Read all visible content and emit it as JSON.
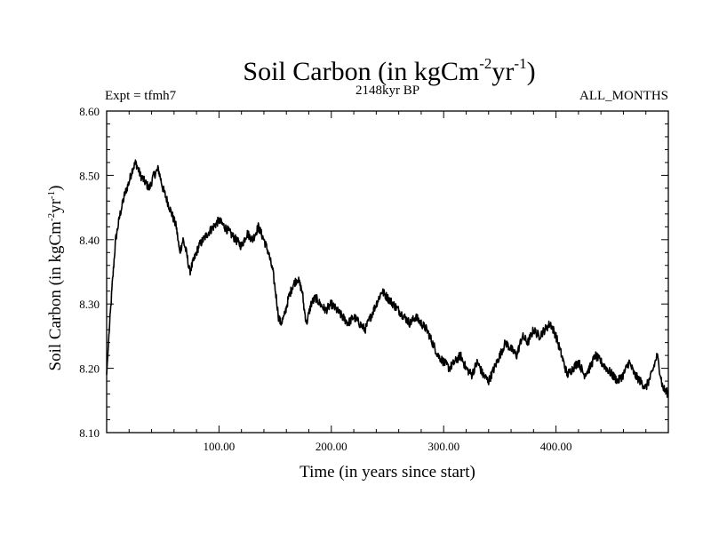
{
  "header": {
    "title": "Soil Carbon (in kgCm",
    "title_sup1": "-2",
    "title_mid": "yr",
    "title_sup2": "-1",
    "title_end": ")",
    "expt": "Expt = tfmh7",
    "period": "2148kyr BP",
    "months": "ALL_MONTHS"
  },
  "chart_data": {
    "type": "line",
    "title": "Soil Carbon (in kgCm-2yr-1)",
    "xlabel": "Time (in years since start)",
    "ylabel": "Soil Carbon (in kgCm-2yr-1)",
    "xlim": [
      0,
      500
    ],
    "ylim": [
      8.1,
      8.6
    ],
    "x_ticks": [
      100,
      200,
      300,
      400
    ],
    "x_tick_labels": [
      "100.00",
      "200.00",
      "300.00",
      "400.00"
    ],
    "y_ticks": [
      8.1,
      8.2,
      8.3,
      8.4,
      8.5,
      8.6
    ],
    "y_tick_labels": [
      "8.10",
      "8.20",
      "8.30",
      "8.40",
      "8.50",
      "8.60"
    ],
    "grid": false,
    "series": [
      {
        "name": "Soil Carbon",
        "x": [
          0,
          2,
          5,
          8,
          12,
          16,
          20,
          23,
          26,
          30,
          34,
          38,
          42,
          46,
          50,
          54,
          58,
          62,
          65,
          68,
          71,
          74,
          78,
          82,
          86,
          90,
          95,
          100,
          105,
          110,
          115,
          120,
          125,
          130,
          135,
          140,
          144,
          148,
          151,
          153,
          155,
          158,
          162,
          166,
          170,
          174,
          176,
          178,
          182,
          186,
          190,
          195,
          200,
          205,
          210,
          215,
          220,
          225,
          230,
          235,
          240,
          245,
          250,
          255,
          260,
          265,
          270,
          275,
          280,
          285,
          290,
          295,
          300,
          305,
          310,
          315,
          320,
          325,
          330,
          335,
          340,
          345,
          350,
          355,
          360,
          365,
          370,
          375,
          380,
          385,
          390,
          395,
          400,
          405,
          410,
          415,
          420,
          425,
          430,
          435,
          440,
          445,
          450,
          455,
          460,
          465,
          470,
          475,
          480,
          485,
          490,
          495,
          500
        ],
        "values": [
          8.19,
          8.25,
          8.33,
          8.4,
          8.44,
          8.47,
          8.49,
          8.51,
          8.52,
          8.5,
          8.49,
          8.48,
          8.5,
          8.51,
          8.48,
          8.46,
          8.44,
          8.42,
          8.38,
          8.4,
          8.38,
          8.35,
          8.37,
          8.39,
          8.4,
          8.41,
          8.42,
          8.43,
          8.42,
          8.41,
          8.4,
          8.39,
          8.41,
          8.4,
          8.42,
          8.4,
          8.38,
          8.35,
          8.31,
          8.28,
          8.27,
          8.28,
          8.31,
          8.33,
          8.34,
          8.32,
          8.29,
          8.27,
          8.3,
          8.31,
          8.3,
          8.29,
          8.3,
          8.29,
          8.28,
          8.27,
          8.28,
          8.27,
          8.26,
          8.28,
          8.3,
          8.32,
          8.31,
          8.3,
          8.29,
          8.28,
          8.27,
          8.28,
          8.27,
          8.26,
          8.24,
          8.22,
          8.21,
          8.2,
          8.21,
          8.22,
          8.2,
          8.19,
          8.21,
          8.19,
          8.18,
          8.2,
          8.22,
          8.24,
          8.23,
          8.22,
          8.25,
          8.24,
          8.26,
          8.25,
          8.26,
          8.27,
          8.25,
          8.22,
          8.19,
          8.2,
          8.21,
          8.19,
          8.2,
          8.22,
          8.21,
          8.2,
          8.19,
          8.18,
          8.19,
          8.21,
          8.19,
          8.18,
          8.17,
          8.19,
          8.22,
          8.17,
          8.16
        ]
      }
    ]
  }
}
